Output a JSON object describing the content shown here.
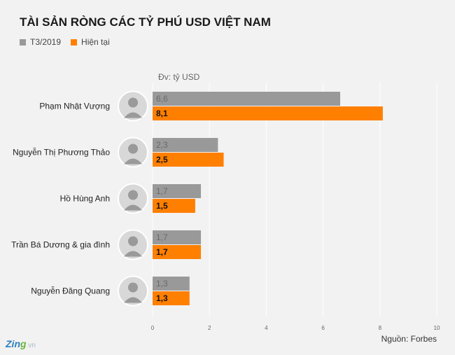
{
  "colors": {
    "series_2019": "#999999",
    "series_now": "#ff7f00",
    "background": "#f2f2f2",
    "grid": "#ffffff"
  },
  "chart_data": {
    "type": "bar",
    "orientation": "horizontal",
    "title": "TÀI SẢN RÒNG CÁC TỶ PHÚ USD VIỆT NAM",
    "unit_note": "Đv: tỷ USD",
    "source": "Nguồn: Forbes",
    "categories": [
      "Phạm Nhật Vượng",
      "Nguyễn Thị Phương Thảo",
      "Hồ Hùng Anh",
      "Trần Bá Dương & gia đình",
      "Nguyễn Đăng Quang"
    ],
    "series": [
      {
        "name": "T3/2019",
        "color": "#999999",
        "values": [
          6.6,
          2.3,
          1.7,
          1.7,
          1.3
        ],
        "labels": [
          "6,6",
          "2,3",
          "1,7",
          "1,7",
          "1,3"
        ]
      },
      {
        "name": "Hiện tại",
        "color": "#ff7f00",
        "values": [
          8.1,
          2.5,
          1.5,
          1.7,
          1.3
        ],
        "labels": [
          "8,1",
          "2,5",
          "1,5",
          "1,7",
          "1,3"
        ]
      }
    ],
    "xlim": [
      0,
      10
    ],
    "xticks": [
      0,
      2,
      4,
      6,
      8,
      10
    ],
    "xtick_labels": [
      "0",
      "2",
      "4",
      "6",
      "8",
      "10"
    ],
    "grid": true,
    "legend_position": "top-left"
  },
  "watermark": {
    "main": "Zin",
    "g": "g",
    "tld": ".vn"
  },
  "avatar_icon": "person-photo-icon"
}
